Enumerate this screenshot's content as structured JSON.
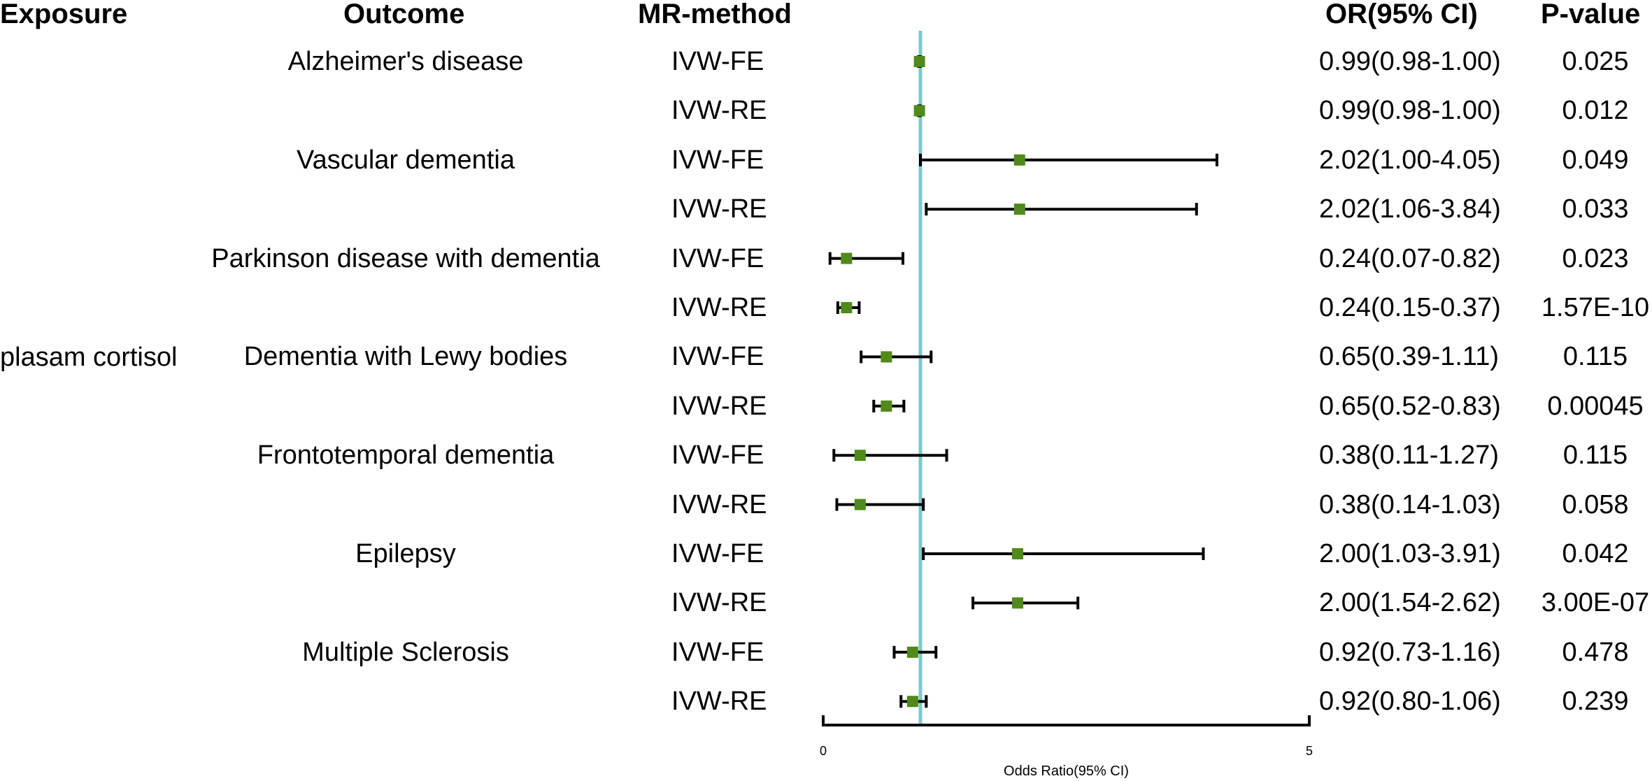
{
  "headers": {
    "exposure": "Exposure",
    "outcome": "Outcome",
    "method": "MR-method",
    "or": "OR(95% CI)",
    "pvalue": "P-value"
  },
  "exposure_label": "plasam cortisol",
  "colors": {
    "marker": "#4f8a1a",
    "reference_line": "#7ec8c9",
    "line": "#000000"
  },
  "chart_data": {
    "type": "forest",
    "title": "",
    "xlabel": "Odds Ratio(95% CI)",
    "xlim": [
      0,
      5
    ],
    "xticks": [
      0,
      5
    ],
    "reference_value": 1,
    "rows": [
      {
        "outcome": "Alzheimer's disease",
        "method": "IVW-FE",
        "or": 0.99,
        "lo": 0.98,
        "hi": 1.0,
        "or_text": "0.99(0.98-1.00)",
        "p": "0.025"
      },
      {
        "outcome": "",
        "method": "IVW-RE",
        "or": 0.99,
        "lo": 0.98,
        "hi": 1.0,
        "or_text": "0.99(0.98-1.00)",
        "p": "0.012"
      },
      {
        "outcome": "Vascular dementia",
        "method": "IVW-FE",
        "or": 2.02,
        "lo": 1.0,
        "hi": 4.05,
        "or_text": "2.02(1.00-4.05)",
        "p": "0.049"
      },
      {
        "outcome": "",
        "method": "IVW-RE",
        "or": 2.02,
        "lo": 1.06,
        "hi": 3.84,
        "or_text": "2.02(1.06-3.84)",
        "p": "0.033"
      },
      {
        "outcome": "Parkinson disease with dementia",
        "method": "IVW-FE",
        "or": 0.24,
        "lo": 0.07,
        "hi": 0.82,
        "or_text": "0.24(0.07-0.82)",
        "p": "0.023"
      },
      {
        "outcome": "",
        "method": "IVW-RE",
        "or": 0.24,
        "lo": 0.15,
        "hi": 0.37,
        "or_text": "0.24(0.15-0.37)",
        "p": "1.57E-10"
      },
      {
        "outcome": "Dementia with Lewy bodies",
        "method": "IVW-FE",
        "or": 0.65,
        "lo": 0.39,
        "hi": 1.11,
        "or_text": "0.65(0.39-1.11)",
        "p": "0.115"
      },
      {
        "outcome": "",
        "method": "IVW-RE",
        "or": 0.65,
        "lo": 0.52,
        "hi": 0.83,
        "or_text": "0.65(0.52-0.83)",
        "p": "0.00045"
      },
      {
        "outcome": "Frontotemporal dementia",
        "method": "IVW-FE",
        "or": 0.38,
        "lo": 0.11,
        "hi": 1.27,
        "or_text": "0.38(0.11-1.27)",
        "p": "0.115"
      },
      {
        "outcome": "",
        "method": "IVW-RE",
        "or": 0.38,
        "lo": 0.14,
        "hi": 1.03,
        "or_text": "0.38(0.14-1.03)",
        "p": "0.058"
      },
      {
        "outcome": "Epilepsy",
        "method": "IVW-FE",
        "or": 2.0,
        "lo": 1.03,
        "hi": 3.91,
        "or_text": "2.00(1.03-3.91)",
        "p": "0.042"
      },
      {
        "outcome": "",
        "method": "IVW-RE",
        "or": 2.0,
        "lo": 1.54,
        "hi": 2.62,
        "or_text": "2.00(1.54-2.62)",
        "p": "3.00E-07"
      },
      {
        "outcome": "Multiple Sclerosis",
        "method": "IVW-FE",
        "or": 0.92,
        "lo": 0.73,
        "hi": 1.16,
        "or_text": "0.92(0.73-1.16)",
        "p": "0.478"
      },
      {
        "outcome": "",
        "method": "IVW-RE",
        "or": 0.92,
        "lo": 0.8,
        "hi": 1.06,
        "or_text": "0.92(0.80-1.06)",
        "p": "0.239"
      }
    ]
  }
}
